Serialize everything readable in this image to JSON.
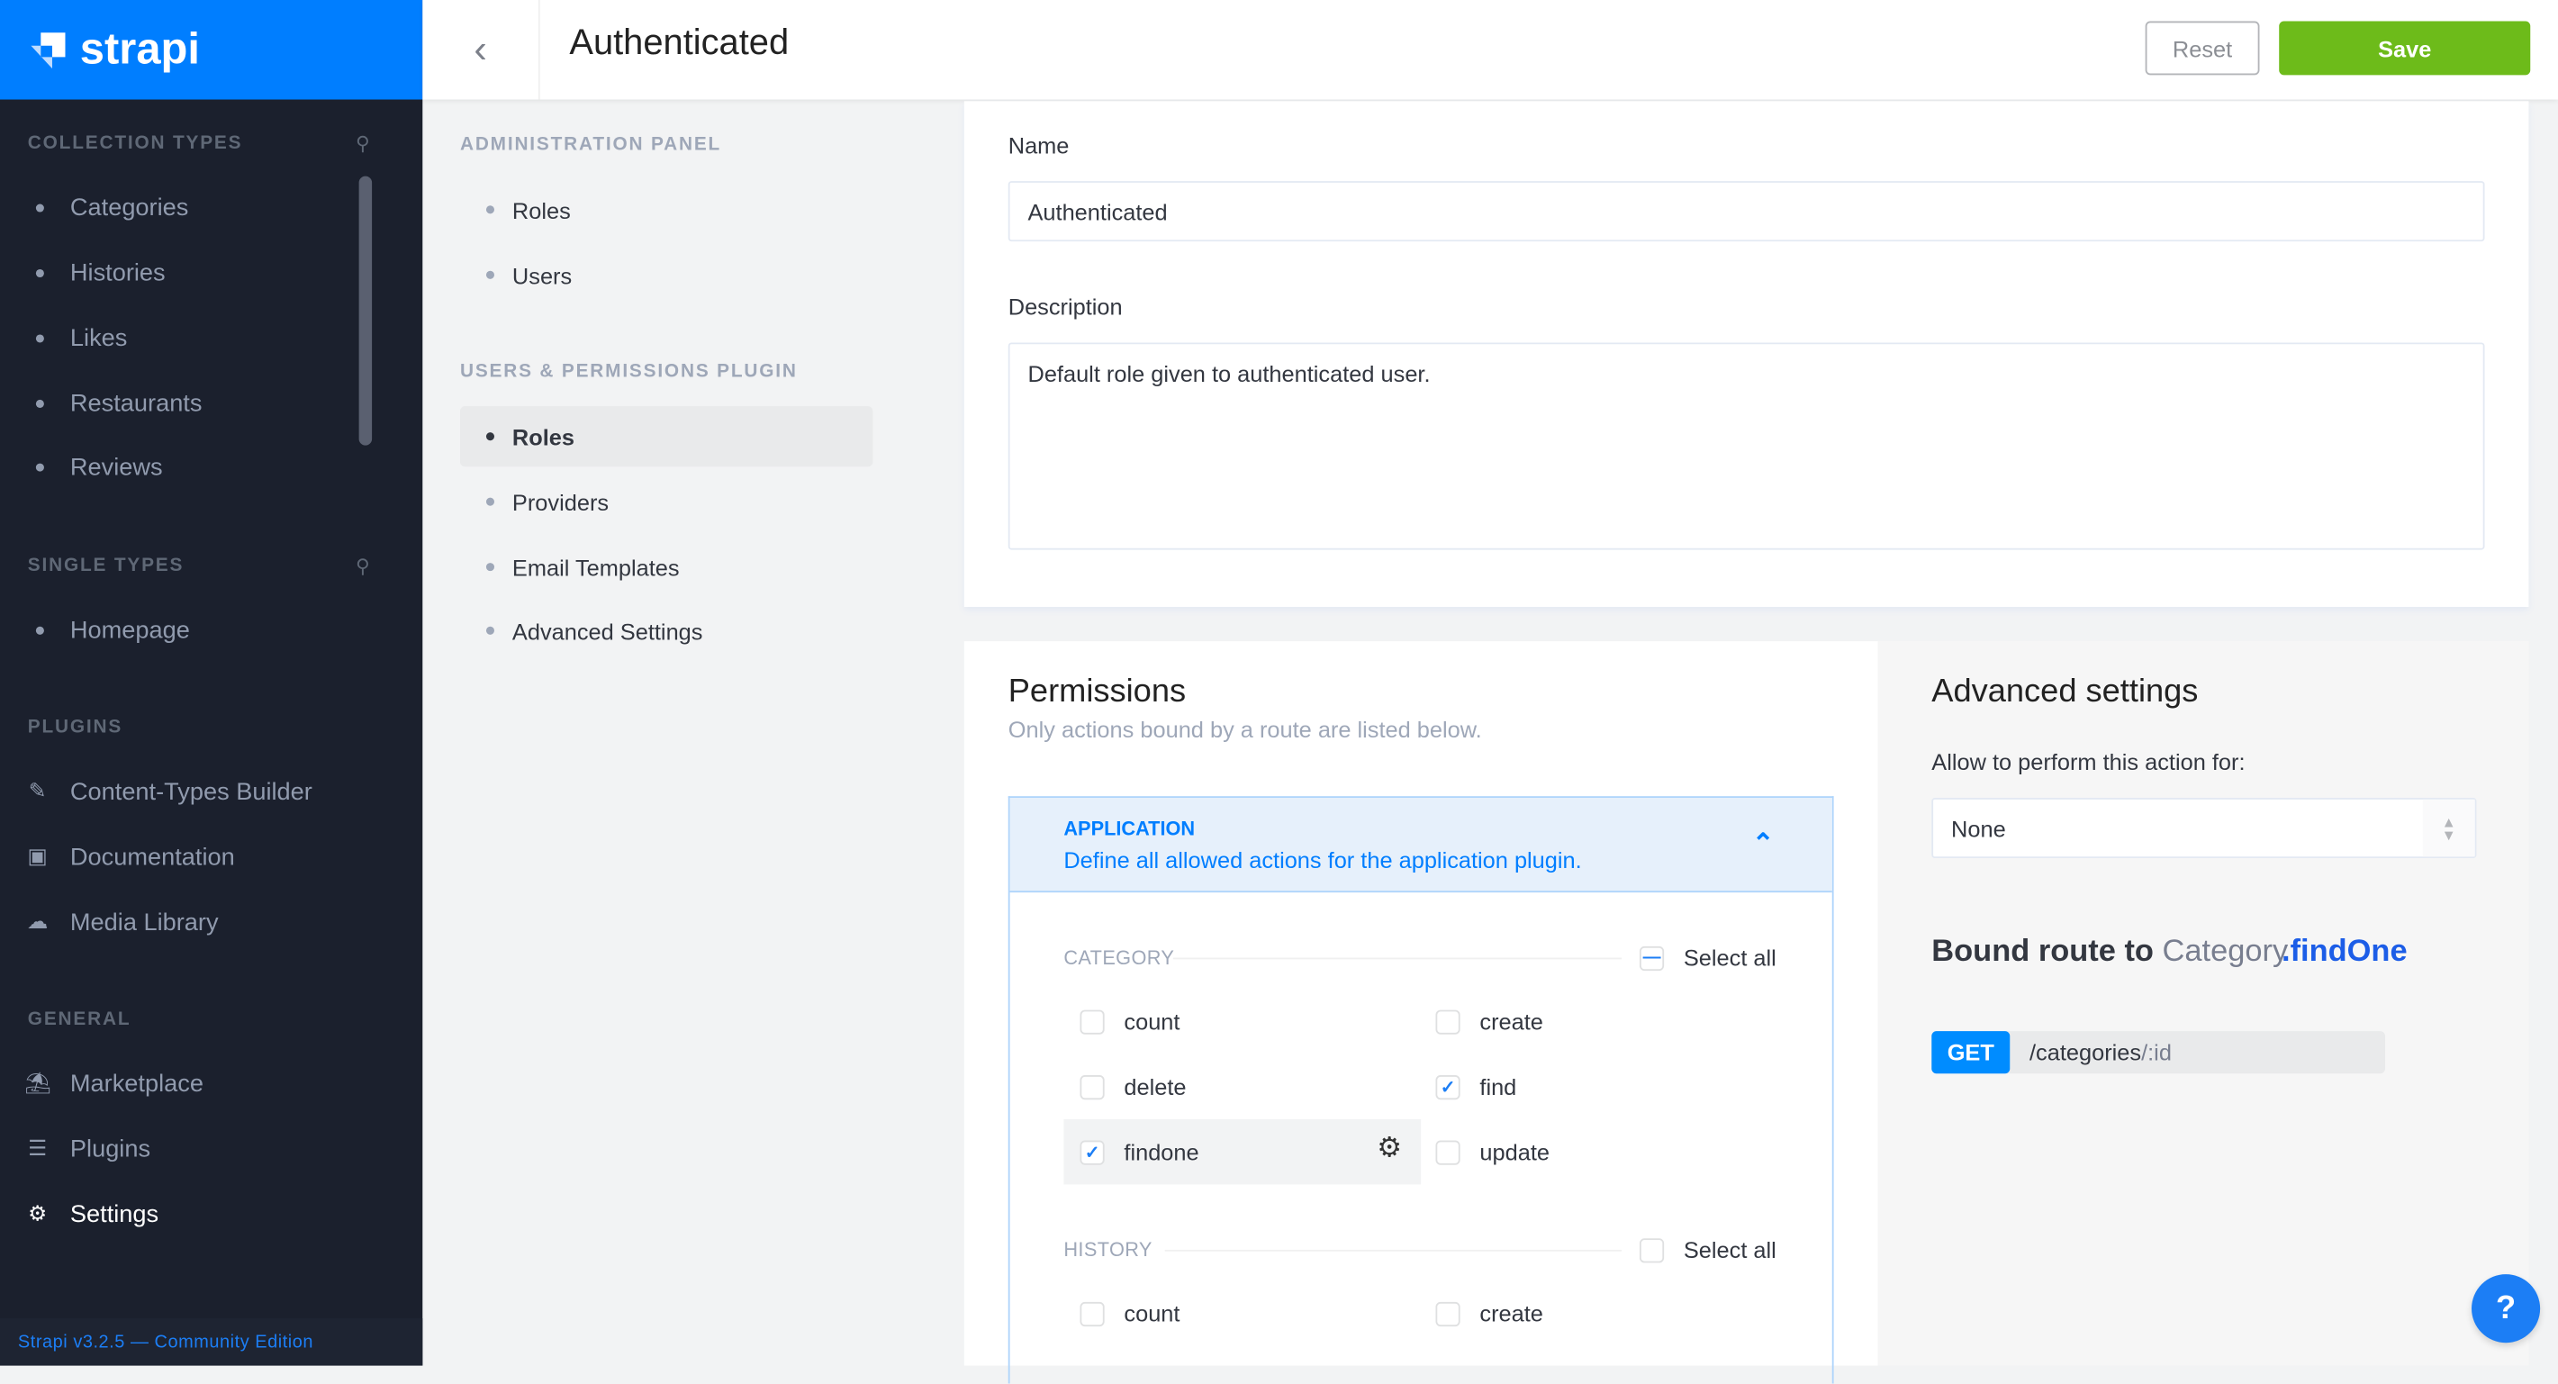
{
  "brand": {
    "name": "strapi",
    "color": "#007eff"
  },
  "sidebar": {
    "sections": [
      {
        "title": "COLLECTION TYPES",
        "items": [
          "Categories",
          "Histories",
          "Likes",
          "Restaurants",
          "Reviews"
        ]
      },
      {
        "title": "SINGLE TYPES",
        "items": [
          "Homepage"
        ]
      },
      {
        "title": "PLUGINS",
        "items": [
          "Content-Types Builder",
          "Documentation",
          "Media Library"
        ]
      },
      {
        "title": "GENERAL",
        "items": [
          "Marketplace",
          "Plugins",
          "Settings"
        ]
      }
    ],
    "active": "Settings",
    "footer": "Strapi v3.2.5 — Community Edition"
  },
  "header": {
    "title": "Authenticated",
    "reset_label": "Reset",
    "save_label": "Save",
    "save_color": "#6dbb1a"
  },
  "submenu": {
    "sections": [
      {
        "title": "ADMINISTRATION PANEL",
        "items": [
          "Roles",
          "Users"
        ]
      },
      {
        "title": "USERS & PERMISSIONS PLUGIN",
        "items": [
          "Roles",
          "Providers",
          "Email Templates",
          "Advanced Settings"
        ]
      }
    ],
    "active": "Roles"
  },
  "form": {
    "name_label": "Name",
    "name_value": "Authenticated",
    "description_label": "Description",
    "description_value": "Default role given to authenticated user."
  },
  "permissions": {
    "title": "Permissions",
    "subtitle": "Only actions bound by a route are listed below.",
    "plugin": {
      "name": "APPLICATION",
      "description": "Define all allowed actions for the application plugin.",
      "expanded": true
    },
    "groups": [
      {
        "name": "CATEGORY",
        "select_all": "Select all",
        "select_all_state": "indeterminate",
        "actions": [
          {
            "label": "count",
            "checked": false
          },
          {
            "label": "create",
            "checked": false
          },
          {
            "label": "delete",
            "checked": false
          },
          {
            "label": "find",
            "checked": true
          },
          {
            "label": "findone",
            "checked": true,
            "selected": true
          },
          {
            "label": "update",
            "checked": false
          }
        ]
      },
      {
        "name": "HISTORY",
        "select_all": "Select all",
        "select_all_state": "unchecked",
        "actions": [
          {
            "label": "count",
            "checked": false
          },
          {
            "label": "create",
            "checked": false
          }
        ]
      }
    ]
  },
  "advanced": {
    "title": "Advanced settings",
    "allow_label": "Allow to perform this action for:",
    "allow_value": "None",
    "bound_prefix": "Bound route to",
    "bound_controller": "Category",
    "bound_action": ".findOne",
    "method": "GET",
    "path_main": "/categories",
    "path_param": "/:id"
  },
  "help": {
    "label": "?"
  }
}
